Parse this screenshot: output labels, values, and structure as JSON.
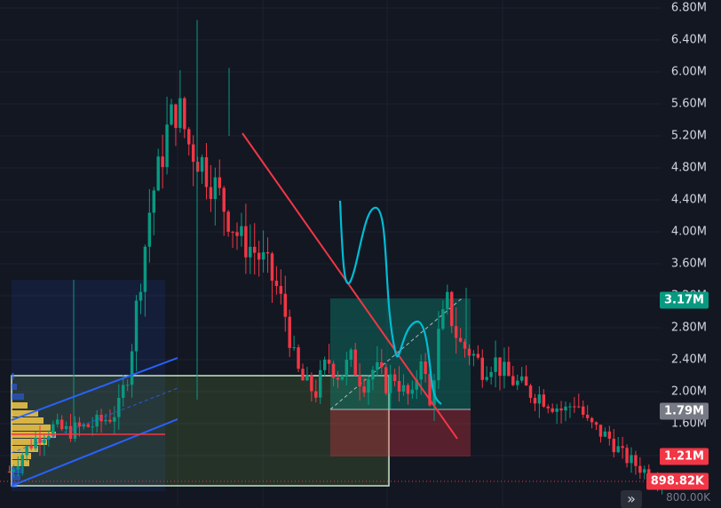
{
  "price_axis": {
    "labels": [
      "6.80M",
      "6.40M",
      "6.00M",
      "5.60M",
      "5.20M",
      "4.80M",
      "4.40M",
      "4.00M",
      "3.60M",
      "3.20M",
      "2.80M",
      "2.40M",
      "2.00M",
      "1.60M",
      "1.20M"
    ]
  },
  "badges": {
    "take_profit": "3.17M",
    "entry": "1.79M",
    "stop": "1.21M",
    "current": "898.82K"
  },
  "bottom_faint_label": "800.00K",
  "scroll_button_glyph": "»",
  "colors": {
    "background": "#131722",
    "up_candle": "#089981",
    "down_candle": "#f23645",
    "trendline": "#f23645",
    "channel": "#2962ff",
    "projection": "#00bcd4",
    "long_profit_zone": "#089981",
    "long_loss_zone": "#f23645",
    "range_box": "#c8e6c9"
  },
  "chart_data": {
    "type": "candlestick",
    "y_unit": "M",
    "ylim": [
      0.8,
      6.8
    ],
    "candle_count": 150
  }
}
